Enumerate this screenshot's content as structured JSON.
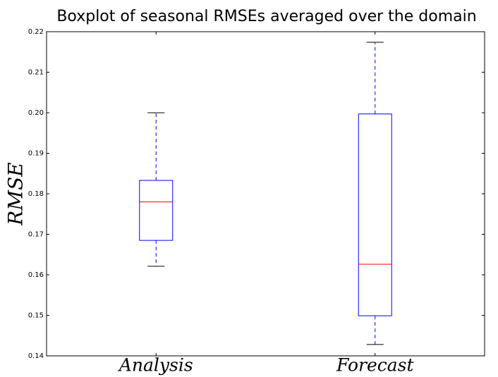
{
  "chart_data": {
    "type": "box",
    "title": "Boxplot of seasonal RMSEs averaged over the domain",
    "y_label": "RMSE",
    "categories": [
      "Analysis",
      "Forecast"
    ],
    "boxes": [
      {
        "whislo": 0.1621,
        "q1": 0.1685,
        "med": 0.178,
        "q3": 0.1833,
        "whishi": 0.2
      },
      {
        "whislo": 0.1428,
        "q1": 0.1499,
        "med": 0.1626,
        "q3": 0.1997,
        "whishi": 0.2174
      }
    ],
    "box_color": "#0000ff",
    "median_color": "#ff0000",
    "whisker_color": "#0000ff",
    "cap_color": "#000000",
    "ylim": [
      0.14,
      0.22
    ],
    "yticks": [
      0.14,
      0.15,
      0.16,
      0.17,
      0.18,
      0.19,
      {
        "value": 0.2,
        "label": "0.20"
      },
      0.21,
      0.22
    ],
    "grid": false
  }
}
